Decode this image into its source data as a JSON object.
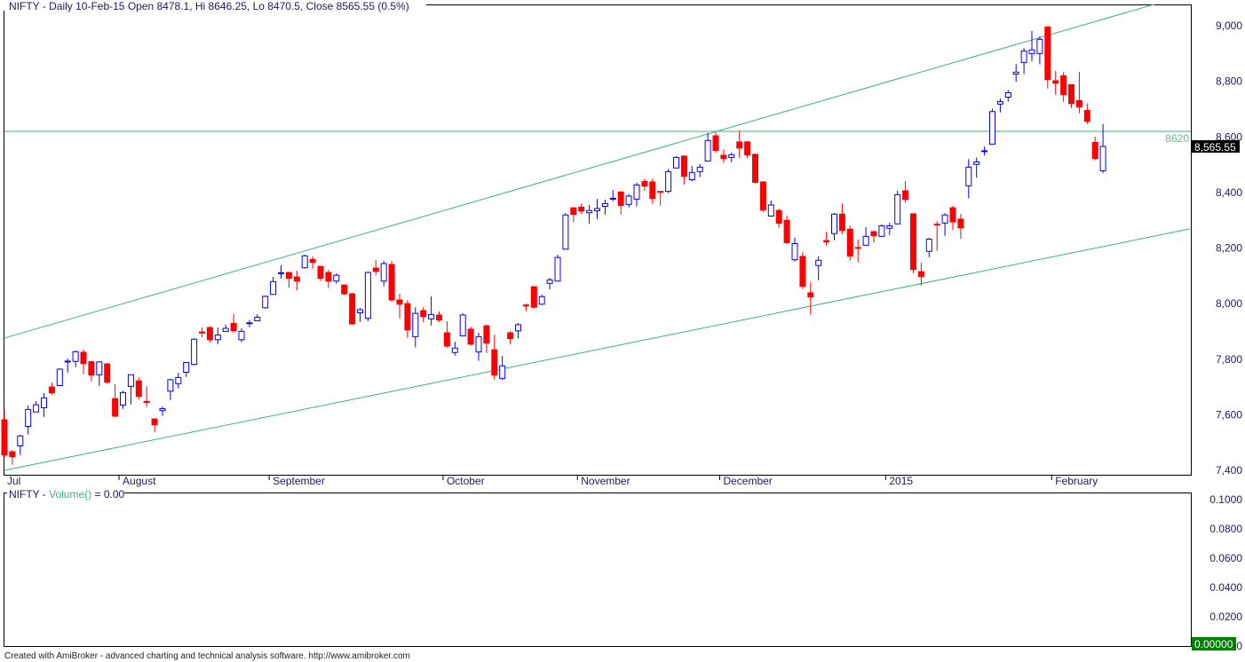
{
  "header": {
    "title": "NIFTY - Daily 10-Feb-15 Open 8478.1, Hi 8646.25, Lo 8470.5, Close 8565.55 (0.5%)"
  },
  "volume_pane": {
    "title_prefix": "NIFTY - ",
    "title_func": "Volume()",
    "title_suffix": " = 0.00",
    "current_value": "0.00000",
    "ticks": [
      "0.1000",
      "0.0800",
      "0.0600",
      "0.0400",
      "0.0200",
      "0"
    ],
    "tick_values": [
      0.1,
      0.08,
      0.06,
      0.04,
      0.02,
      0
    ]
  },
  "footer": {
    "text": "Created with AmiBroker - advanced charting and technical analysis software. http://www.amibroker.com"
  },
  "colors": {
    "up": "#0000ff",
    "down": "#ff0000",
    "trendline": "#3cb371",
    "last_price_bg": "#000000",
    "volume_value_bg": "#008000",
    "text": "#1a1a60"
  },
  "chart_data": {
    "type": "candlestick",
    "symbol": "NIFTY",
    "interval": "Daily",
    "ylim": [
      7400,
      9000
    ],
    "yticks": [
      7400,
      7600,
      7800,
      8000,
      8200,
      8400,
      8600,
      8800,
      9000
    ],
    "ytick_labels": [
      "7,400",
      "7,600",
      "7,800",
      "8,000",
      "8,200",
      "8,400",
      "8,600",
      "8,800",
      "9,000"
    ],
    "last_price_label": "8,565.55",
    "months": [
      {
        "label": "Jul",
        "index": 0
      },
      {
        "label": "August",
        "index": 15
      },
      {
        "label": "September",
        "index": 34
      },
      {
        "label": "October",
        "index": 56
      },
      {
        "label": "November",
        "index": 73
      },
      {
        "label": "December",
        "index": 91
      },
      {
        "label": "2015",
        "index": 112
      },
      {
        "label": "February",
        "index": 133
      }
    ],
    "horizontal_line": {
      "value": 8620,
      "label": "8620"
    },
    "channel_lines": [
      {
        "from": [
          0,
          7876
        ],
        "to": [
          145.5,
          9077
        ]
      },
      {
        "from": [
          0,
          7400
        ],
        "to": [
          150,
          8269
        ]
      }
    ],
    "ohlc": [
      [
        7582,
        7620,
        7446,
        7455
      ],
      [
        7467,
        7473,
        7420,
        7449
      ],
      [
        7488,
        7528,
        7455,
        7524
      ],
      [
        7558,
        7633,
        7529,
        7619
      ],
      [
        7610,
        7649,
        7610,
        7636
      ],
      [
        7625,
        7678,
        7592,
        7661
      ],
      [
        7700,
        7716,
        7672,
        7679
      ],
      [
        7705,
        7767,
        7705,
        7764
      ],
      [
        7790,
        7802,
        7752,
        7793
      ],
      [
        7792,
        7831,
        7771,
        7827
      ],
      [
        7825,
        7835,
        7746,
        7784
      ],
      [
        7791,
        7794,
        7720,
        7743
      ],
      [
        7744,
        7793,
        7704,
        7790
      ],
      [
        7783,
        7787,
        7712,
        7717
      ],
      [
        7658,
        7710,
        7591,
        7595
      ],
      [
        7635,
        7686,
        7621,
        7680
      ],
      [
        7702,
        7744,
        7637,
        7744
      ],
      [
        7722,
        7735,
        7656,
        7666
      ],
      [
        7648,
        7703,
        7628,
        7644
      ],
      [
        7585,
        7585,
        7538,
        7564
      ],
      [
        7615,
        7630,
        7596,
        7622
      ],
      [
        7685,
        7730,
        7653,
        7726
      ],
      [
        7712,
        7751,
        7695,
        7734
      ],
      [
        7753,
        7788,
        7736,
        7788
      ],
      [
        7781,
        7876,
        7778,
        7872
      ],
      [
        7898,
        7914,
        7880,
        7894
      ],
      [
        7914,
        7917,
        7860,
        7870
      ],
      [
        7870,
        7914,
        7854,
        7887
      ],
      [
        7900,
        7924,
        7900,
        7911
      ],
      [
        7929,
        7962,
        7896,
        7902
      ],
      [
        7870,
        7911,
        7861,
        7900
      ],
      [
        7928,
        7941,
        7915,
        7931
      ],
      [
        7938,
        7962,
        7938,
        7951
      ],
      [
        7985,
        8029,
        7982,
        8026
      ],
      [
        8033,
        8096,
        8033,
        8079
      ],
      [
        8108,
        8138,
        8090,
        8111
      ],
      [
        8112,
        8112,
        8058,
        8091
      ],
      [
        8096,
        8118,
        8048,
        8081
      ],
      [
        8129,
        8176,
        8126,
        8172
      ],
      [
        8159,
        8170,
        8126,
        8148
      ],
      [
        8134,
        8134,
        8081,
        8091
      ],
      [
        8112,
        8122,
        8056,
        8081
      ],
      [
        8081,
        8109,
        8072,
        8102
      ],
      [
        8067,
        8067,
        8030,
        8035
      ],
      [
        8035,
        8039,
        7924,
        7927
      ],
      [
        7967,
        7984,
        7934,
        7978
      ],
      [
        7947,
        8115,
        7937,
        8112
      ],
      [
        8128,
        8157,
        8102,
        8116
      ],
      [
        8081,
        8154,
        8062,
        8144
      ],
      [
        8141,
        8154,
        8007,
        8013
      ],
      [
        8013,
        8035,
        7947,
        7998
      ],
      [
        8000,
        8013,
        7877,
        7905
      ],
      [
        7881,
        7987,
        7842,
        7965
      ],
      [
        7975,
        7987,
        7934,
        7953
      ],
      [
        7945,
        8026,
        7921,
        7961
      ],
      [
        7959,
        7972,
        7934,
        7941
      ],
      [
        7895,
        7936,
        7842,
        7847
      ],
      [
        7824,
        7863,
        7813,
        7840
      ],
      [
        7884,
        7965,
        7884,
        7959
      ],
      [
        7908,
        7917,
        7848,
        7854
      ],
      [
        7826,
        7895,
        7794,
        7881
      ],
      [
        7920,
        7925,
        7822,
        7858
      ],
      [
        7834,
        7888,
        7727,
        7743
      ],
      [
        7731,
        7812,
        7725,
        7776
      ],
      [
        7895,
        7901,
        7854,
        7874
      ],
      [
        7902,
        7930,
        7874,
        7924
      ],
      [
        7995,
        8000,
        7973,
        7993
      ],
      [
        8061,
        8061,
        7984,
        7987
      ],
      [
        7998,
        8032,
        7995,
        8025
      ],
      [
        8073,
        8093,
        8051,
        8085
      ],
      [
        8081,
        8176,
        8081,
        8166
      ],
      [
        8196,
        8326,
        8196,
        8319
      ],
      [
        8345,
        8345,
        8294,
        8321
      ],
      [
        8347,
        8361,
        8323,
        8333
      ],
      [
        8327,
        8355,
        8288,
        8335
      ],
      [
        8334,
        8377,
        8305,
        8342
      ],
      [
        8350,
        8374,
        8320,
        8360
      ],
      [
        8376,
        8409,
        8369,
        8379
      ],
      [
        8402,
        8402,
        8321,
        8353
      ],
      [
        8357,
        8395,
        8346,
        8387
      ],
      [
        8376,
        8435,
        8350,
        8427
      ],
      [
        8440,
        8450,
        8406,
        8423
      ],
      [
        8438,
        8450,
        8359,
        8378
      ],
      [
        8404,
        8404,
        8353,
        8401
      ],
      [
        8404,
        8485,
        8397,
        8475
      ],
      [
        8488,
        8531,
        8488,
        8526
      ],
      [
        8531,
        8531,
        8428,
        8458
      ],
      [
        8446,
        8495,
        8440,
        8472
      ],
      [
        8475,
        8502,
        8455,
        8491
      ],
      [
        8513,
        8614,
        8513,
        8587
      ],
      [
        8604,
        8617,
        8543,
        8551
      ],
      [
        8534,
        8555,
        8506,
        8522
      ],
      [
        8526,
        8543,
        8509,
        8536
      ],
      [
        8582,
        8622,
        8525,
        8560
      ],
      [
        8582,
        8585,
        8522,
        8535
      ],
      [
        8537,
        8540,
        8433,
        8436
      ],
      [
        8438,
        8441,
        8330,
        8337
      ],
      [
        8315,
        8371,
        8315,
        8355
      ],
      [
        8335,
        8341,
        8273,
        8289
      ],
      [
        8300,
        8317,
        8215,
        8219
      ],
      [
        8158,
        8237,
        8151,
        8216
      ],
      [
        8170,
        8186,
        8052,
        8062
      ],
      [
        8039,
        8077,
        7960,
        8024
      ],
      [
        8137,
        8170,
        8084,
        8156
      ],
      [
        8227,
        8259,
        8209,
        8222
      ],
      [
        8252,
        8326,
        8228,
        8322
      ],
      [
        8322,
        8361,
        8250,
        8263
      ],
      [
        8268,
        8281,
        8155,
        8171
      ],
      [
        8202,
        8230,
        8148,
        8199
      ],
      [
        8210,
        8275,
        8210,
        8242
      ],
      [
        8259,
        8262,
        8219,
        8244
      ],
      [
        8242,
        8285,
        8242,
        8280
      ],
      [
        8271,
        8291,
        8247,
        8280
      ],
      [
        8287,
        8406,
        8287,
        8392
      ],
      [
        8406,
        8441,
        8362,
        8375
      ],
      [
        8323,
        8323,
        8110,
        8123
      ],
      [
        8115,
        8147,
        8065,
        8097
      ],
      [
        8188,
        8237,
        8167,
        8232
      ],
      [
        8286,
        8296,
        8190,
        8283
      ],
      [
        8290,
        8326,
        8244,
        8319
      ],
      [
        8345,
        8352,
        8265,
        8294
      ],
      [
        8304,
        8323,
        8233,
        8273
      ],
      [
        8424,
        8520,
        8379,
        8491
      ],
      [
        8501,
        8526,
        8453,
        8510
      ],
      [
        8547,
        8565,
        8533,
        8550
      ],
      [
        8574,
        8701,
        8574,
        8691
      ],
      [
        8718,
        8738,
        8688,
        8727
      ],
      [
        8743,
        8769,
        8727,
        8759
      ],
      [
        8826,
        8862,
        8798,
        8833
      ],
      [
        8868,
        8919,
        8826,
        8909
      ],
      [
        8900,
        8981,
        8873,
        8913
      ],
      [
        8900,
        8961,
        8861,
        8951
      ],
      [
        8996,
        8996,
        8774,
        8806
      ],
      [
        8802,
        8837,
        8752,
        8793
      ],
      [
        8820,
        8833,
        8726,
        8752
      ],
      [
        8788,
        8788,
        8704,
        8720
      ],
      [
        8731,
        8834,
        8685,
        8708
      ],
      [
        8695,
        8721,
        8646,
        8656
      ],
      [
        8580,
        8601,
        8516,
        8522
      ],
      [
        8478.1,
        8646.25,
        8470.5,
        8565.55
      ]
    ]
  }
}
